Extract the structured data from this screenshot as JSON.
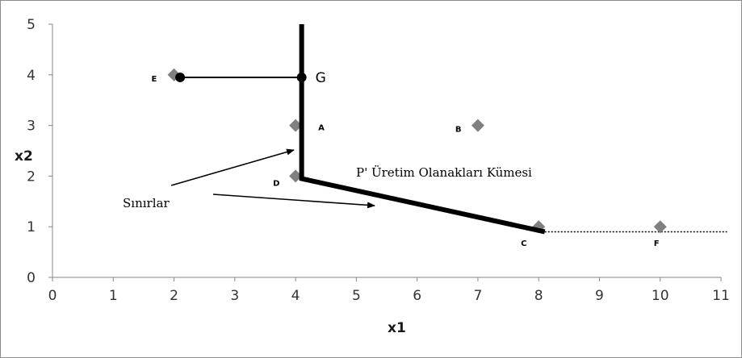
{
  "chart_data": {
    "type": "scatter",
    "xlabel": "x1",
    "ylabel": "x2",
    "xlim": [
      0,
      11
    ],
    "ylim": [
      0,
      5
    ],
    "x_ticks": [
      "0",
      "1",
      "2",
      "3",
      "4",
      "5",
      "6",
      "7",
      "8",
      "9",
      "10",
      "11"
    ],
    "y_ticks": [
      "0",
      "1",
      "2",
      "3",
      "4",
      "5"
    ],
    "grid": false,
    "marker_color": "#808080",
    "points": [
      {
        "label": "E",
        "x": 2,
        "y": 4
      },
      {
        "label": "A",
        "x": 4,
        "y": 3
      },
      {
        "label": "B",
        "x": 7,
        "y": 3
      },
      {
        "label": "D",
        "x": 4,
        "y": 2
      },
      {
        "label": "C",
        "x": 8,
        "y": 1
      },
      {
        "label": "F",
        "x": 10,
        "y": 1
      }
    ],
    "frontier": [
      {
        "x": 4.1,
        "y": 5
      },
      {
        "x": 4.1,
        "y": 1.95
      },
      {
        "x": 8.1,
        "y": 0.9
      }
    ],
    "frontier_extension": [
      {
        "x": 8.1,
        "y": 0.9
      },
      {
        "x": 11.1,
        "y": 0.9
      }
    ],
    "projection": {
      "from": {
        "x": 2.1,
        "y": 3.95
      },
      "to": {
        "x": 4.1,
        "y": 3.95
      },
      "label": "G"
    },
    "annotations": {
      "region_label": "P' Üretim Olanakları Kümesi",
      "boundary_label": "Sınırlar"
    }
  }
}
